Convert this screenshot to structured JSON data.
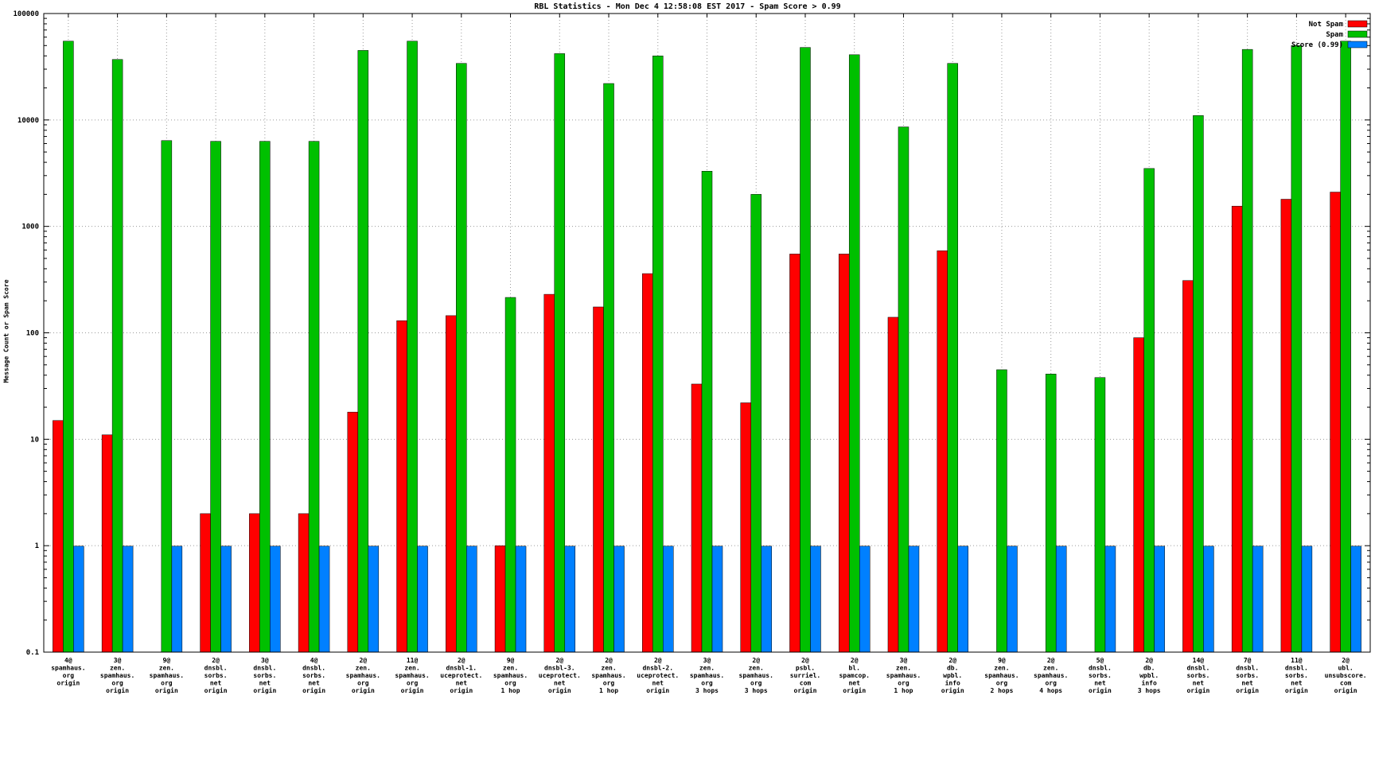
{
  "chart_data": {
    "type": "bar",
    "title": "RBL Statistics - Mon Dec  4 12:58:08 EST 2017 - Spam Score > 0.99",
    "ylabel": "Message Count or Spam Score",
    "xlabel": "",
    "y_scale": "log",
    "ylim": [
      0.1,
      100000
    ],
    "y_tick_labels": [
      "0.1",
      "1",
      "10",
      "100",
      "1000",
      "10000",
      "100000"
    ],
    "grid": true,
    "legend_position": "top-right",
    "categories": [
      [
        "4@",
        "spamhaus.",
        "org",
        "origin"
      ],
      [
        "3@",
        "zen.",
        "spamhaus.",
        "org",
        "origin"
      ],
      [
        "9@",
        "zen.",
        "spamhaus.",
        "org",
        "origin"
      ],
      [
        "2@",
        "dnsbl.",
        "sorbs.",
        "net",
        "origin"
      ],
      [
        "3@",
        "dnsbl.",
        "sorbs.",
        "net",
        "origin"
      ],
      [
        "4@",
        "dnsbl.",
        "sorbs.",
        "net",
        "origin"
      ],
      [
        "2@",
        "zen.",
        "spamhaus.",
        "org",
        "origin"
      ],
      [
        "11@",
        "zen.",
        "spamhaus.",
        "org",
        "origin"
      ],
      [
        "2@",
        "dnsbl-1.",
        "uceprotect.",
        "net",
        "origin"
      ],
      [
        "9@",
        "zen.",
        "spamhaus.",
        "org",
        "1 hop"
      ],
      [
        "2@",
        "dnsbl-3.",
        "uceprotect.",
        "net",
        "origin"
      ],
      [
        "2@",
        "zen.",
        "spamhaus.",
        "org",
        "1 hop"
      ],
      [
        "2@",
        "dnsbl-2.",
        "uceprotect.",
        "net",
        "origin"
      ],
      [
        "3@",
        "zen.",
        "spamhaus.",
        "org",
        "3 hops"
      ],
      [
        "2@",
        "zen.",
        "spamhaus.",
        "org",
        "3 hops"
      ],
      [
        "2@",
        "psbl.",
        "surriel.",
        "com",
        "origin"
      ],
      [
        "2@",
        "bl.",
        "spamcop.",
        "net",
        "origin"
      ],
      [
        "3@",
        "zen.",
        "spamhaus.",
        "org",
        "1 hop"
      ],
      [
        "2@",
        "db.",
        "wpbl.",
        "info",
        "origin"
      ],
      [
        "9@",
        "zen.",
        "spamhaus.",
        "org",
        "2 hops"
      ],
      [
        "2@",
        "zen.",
        "spamhaus.",
        "org",
        "4 hops"
      ],
      [
        "5@",
        "dnsbl.",
        "sorbs.",
        "net",
        "origin"
      ],
      [
        "2@",
        "db.",
        "wpbl.",
        "info",
        "3 hops"
      ],
      [
        "14@",
        "dnsbl.",
        "sorbs.",
        "net",
        "origin"
      ],
      [
        "7@",
        "dnsbl.",
        "sorbs.",
        "net",
        "origin"
      ],
      [
        "11@",
        "dnsbl.",
        "sorbs.",
        "net",
        "origin"
      ],
      [
        "2@",
        "ubl.",
        "unsubscore.",
        "com",
        "origin"
      ]
    ],
    "series": [
      {
        "name": "Not Spam",
        "color": "#ff0000",
        "values": [
          15,
          11,
          null,
          2,
          2,
          2,
          18,
          130,
          145,
          1,
          230,
          175,
          360,
          33,
          22,
          550,
          550,
          140,
          590,
          null,
          null,
          null,
          90,
          310,
          1550,
          1800,
          2100
        ]
      },
      {
        "name": "Spam",
        "color": "#00c000",
        "values": [
          55000,
          37000,
          6400,
          6300,
          6300,
          6300,
          45000,
          55000,
          34000,
          215,
          42000,
          22000,
          40000,
          3300,
          2000,
          48000,
          41000,
          8600,
          34000,
          45,
          41,
          38,
          3500,
          11000,
          46000,
          50000,
          55000
        ]
      },
      {
        "name": "Score (0.99)",
        "color": "#0080ff",
        "values": [
          0.99,
          0.99,
          0.99,
          0.99,
          0.99,
          0.99,
          0.99,
          0.99,
          0.99,
          0.99,
          0.99,
          0.99,
          0.99,
          0.99,
          0.99,
          0.99,
          0.99,
          0.99,
          0.99,
          0.99,
          0.99,
          0.99,
          0.99,
          0.99,
          0.99,
          0.99,
          0.99
        ]
      }
    ]
  }
}
